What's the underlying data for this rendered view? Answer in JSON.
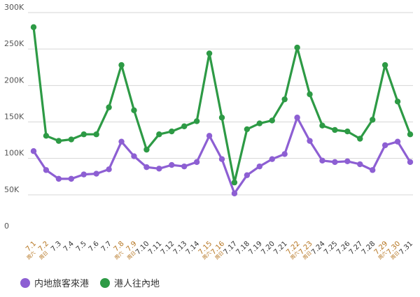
{
  "chart_data": {
    "type": "line",
    "categories": [
      "7.1",
      "7.2",
      "7.3",
      "7.4",
      "7.5",
      "7.6",
      "7.7",
      "7.8",
      "7.9",
      "7.10",
      "7.11",
      "7.12",
      "7.13",
      "7.14",
      "7.15",
      "7.16",
      "7.17",
      "7.18",
      "7.19",
      "7.20",
      "7.21",
      "7.22",
      "7.23",
      "7.24",
      "7.25",
      "7.26",
      "7.27",
      "7.28",
      "7.29",
      "7.30",
      "7.31"
    ],
    "weekday_labels": [
      "周六",
      "周日",
      "",
      "",
      "",
      "",
      "",
      "周六",
      "周日",
      "",
      "",
      "",
      "",
      "",
      "周六",
      "周日",
      "",
      "",
      "",
      "",
      "",
      "周六",
      "周日",
      "",
      "",
      "",
      "",
      "",
      "周六",
      "周日",
      ""
    ],
    "weekend_indices": [
      0,
      1,
      7,
      8,
      14,
      15,
      21,
      22,
      28,
      29
    ],
    "series": [
      {
        "name": "内地旅客來港",
        "color": "#8d5fd3",
        "values": [
          110000,
          84000,
          72000,
          72000,
          78000,
          79000,
          85000,
          123000,
          103000,
          88000,
          86000,
          91000,
          89000,
          95000,
          131000,
          99000,
          52000,
          77000,
          89000,
          99000,
          106000,
          156000,
          124000,
          97000,
          95000,
          96000,
          92000,
          84000,
          118000,
          123000,
          95000
        ]
      },
      {
        "name": "港人往內地",
        "color": "#2d9a45",
        "values": [
          280000,
          131000,
          124000,
          126000,
          133000,
          133000,
          170000,
          228000,
          166000,
          112000,
          133000,
          137000,
          144000,
          151000,
          244000,
          156000,
          67000,
          140000,
          148000,
          152000,
          181000,
          252000,
          188000,
          145000,
          139000,
          137000,
          127000,
          153000,
          228000,
          178000,
          133000
        ]
      }
    ],
    "yticks": [
      "0",
      "50K",
      "100K",
      "150K",
      "200K",
      "250K",
      "300K"
    ],
    "ylim": [
      0,
      300000
    ],
    "weekend_tick_color": "#b5741f",
    "weekday_tick_color": "#333333",
    "grid": true,
    "legend_position": "bottom-left"
  }
}
